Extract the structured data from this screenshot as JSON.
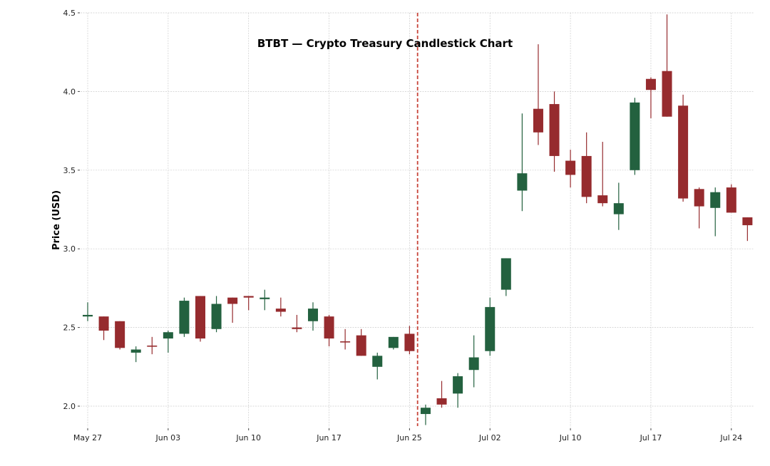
{
  "chart_data": {
    "type": "candlestick",
    "title": "BTBT — Crypto Treasury Candlestick Chart",
    "xlabel": "",
    "ylabel": "Price (USD)",
    "ylim": [
      1.87,
      4.5
    ],
    "grid": true,
    "colors": {
      "up": "#23613f",
      "down": "#962b2e",
      "marker_line": "#c8453a",
      "grid": "#cccccc"
    },
    "yticks": [
      2.0,
      2.5,
      3.0,
      3.5,
      4.0,
      4.5
    ],
    "ytick_labels": [
      "2.0",
      "2.5",
      "3.0",
      "3.5",
      "4.0",
      "4.5"
    ],
    "xticks": [
      {
        "index": 0,
        "label": "May 27"
      },
      {
        "index": 5,
        "label": "Jun 03"
      },
      {
        "index": 10,
        "label": "Jun 10"
      },
      {
        "index": 15,
        "label": "Jun 17"
      },
      {
        "index": 20,
        "label": "Jun 25"
      },
      {
        "index": 25,
        "label": "Jul 02"
      },
      {
        "index": 30,
        "label": "Jul 10"
      },
      {
        "index": 35,
        "label": "Jul 17"
      },
      {
        "index": 40,
        "label": "Jul 24"
      }
    ],
    "vertical_marker": {
      "index": 20.5,
      "style": "dashed"
    },
    "candles": [
      {
        "o": 2.57,
        "h": 2.66,
        "l": 2.54,
        "c": 2.58
      },
      {
        "o": 2.57,
        "h": 2.57,
        "l": 2.42,
        "c": 2.48
      },
      {
        "o": 2.54,
        "h": 2.54,
        "l": 2.36,
        "c": 2.37
      },
      {
        "o": 2.34,
        "h": 2.38,
        "l": 2.28,
        "c": 2.36
      },
      {
        "o": 2.385,
        "h": 2.44,
        "l": 2.33,
        "c": 2.38
      },
      {
        "o": 2.43,
        "h": 2.48,
        "l": 2.34,
        "c": 2.47
      },
      {
        "o": 2.46,
        "h": 2.69,
        "l": 2.44,
        "c": 2.67
      },
      {
        "o": 2.7,
        "h": 2.7,
        "l": 2.41,
        "c": 2.43
      },
      {
        "o": 2.49,
        "h": 2.7,
        "l": 2.47,
        "c": 2.65
      },
      {
        "o": 2.69,
        "h": 2.69,
        "l": 2.53,
        "c": 2.65
      },
      {
        "o": 2.7,
        "h": 2.7,
        "l": 2.61,
        "c": 2.69
      },
      {
        "o": 2.68,
        "h": 2.74,
        "l": 2.61,
        "c": 2.69
      },
      {
        "o": 2.62,
        "h": 2.69,
        "l": 2.57,
        "c": 2.6
      },
      {
        "o": 2.5,
        "h": 2.58,
        "l": 2.47,
        "c": 2.49
      },
      {
        "o": 2.54,
        "h": 2.66,
        "l": 2.48,
        "c": 2.62
      },
      {
        "o": 2.57,
        "h": 2.58,
        "l": 2.38,
        "c": 2.43
      },
      {
        "o": 2.412,
        "h": 2.49,
        "l": 2.36,
        "c": 2.408
      },
      {
        "o": 2.45,
        "h": 2.49,
        "l": 2.32,
        "c": 2.32
      },
      {
        "o": 2.25,
        "h": 2.34,
        "l": 2.17,
        "c": 2.32
      },
      {
        "o": 2.37,
        "h": 2.44,
        "l": 2.36,
        "c": 2.44
      },
      {
        "o": 2.46,
        "h": 2.51,
        "l": 2.33,
        "c": 2.35
      },
      {
        "o": 1.95,
        "h": 2.01,
        "l": 1.88,
        "c": 1.99
      },
      {
        "o": 2.05,
        "h": 2.16,
        "l": 1.99,
        "c": 2.01
      },
      {
        "o": 2.08,
        "h": 2.21,
        "l": 1.99,
        "c": 2.19
      },
      {
        "o": 2.23,
        "h": 2.45,
        "l": 2.12,
        "c": 2.31
      },
      {
        "o": 2.35,
        "h": 2.69,
        "l": 2.32,
        "c": 2.63
      },
      {
        "o": 2.74,
        "h": 2.94,
        "l": 2.7,
        "c": 2.94
      },
      {
        "o": 3.37,
        "h": 3.86,
        "l": 3.24,
        "c": 3.48
      },
      {
        "o": 3.89,
        "h": 4.3,
        "l": 3.66,
        "c": 3.74
      },
      {
        "o": 3.92,
        "h": 4.0,
        "l": 3.49,
        "c": 3.59
      },
      {
        "o": 3.56,
        "h": 3.63,
        "l": 3.39,
        "c": 3.47
      },
      {
        "o": 3.59,
        "h": 3.74,
        "l": 3.29,
        "c": 3.33
      },
      {
        "o": 3.34,
        "h": 3.68,
        "l": 3.27,
        "c": 3.29
      },
      {
        "o": 3.22,
        "h": 3.42,
        "l": 3.12,
        "c": 3.29
      },
      {
        "o": 3.5,
        "h": 3.96,
        "l": 3.47,
        "c": 3.93
      },
      {
        "o": 4.08,
        "h": 4.09,
        "l": 3.83,
        "c": 4.01
      },
      {
        "o": 4.13,
        "h": 4.49,
        "l": 3.84,
        "c": 3.84
      },
      {
        "o": 3.91,
        "h": 3.98,
        "l": 3.3,
        "c": 3.32
      },
      {
        "o": 3.38,
        "h": 3.39,
        "l": 3.13,
        "c": 3.27
      },
      {
        "o": 3.26,
        "h": 3.39,
        "l": 3.08,
        "c": 3.36
      },
      {
        "o": 3.39,
        "h": 3.41,
        "l": 3.23,
        "c": 3.23
      },
      {
        "o": 3.2,
        "h": 3.2,
        "l": 3.05,
        "c": 3.15
      }
    ]
  }
}
